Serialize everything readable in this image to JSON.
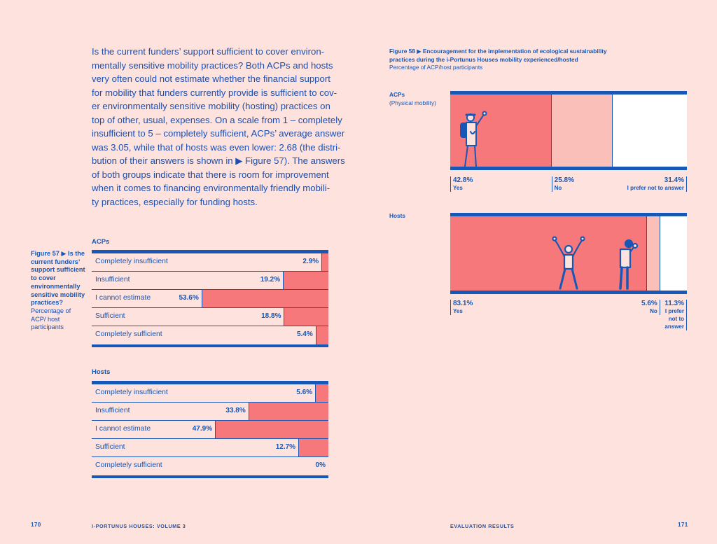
{
  "paragraph": {
    "lines": [
      "Is the current funders’ support sufficient to cover environ-",
      "mentally sensitive mobility practices? Both ACPs and hosts",
      "very often could not estimate whether the financial support",
      "for mobility that funders currently provide is sufficient to cov-",
      "er environmentally sensitive mobility (hosting) practices on",
      "top of other, usual, expenses. On a scale from 1 – completely",
      "insufficient to 5 – completely sufficient, ACPs’ average answer",
      "was 3.05, while that of hosts was even lower: 2.68 (the distri-",
      "bution of their answers is shown in ▶ Figure 57). The answers",
      "of both groups indicate that there is room for improvement",
      "when it comes to financing environmentally friendly mobili-",
      "ty practices, especially for funding hosts."
    ]
  },
  "figure57": {
    "title": "Figure 57 ▶ Is the current funders’ support sufficient to cover environmentally sensitive mobility practices?",
    "subtitle": "Percentage of ACP/ host participants"
  },
  "figure58": {
    "title_line1": "Figure 58 ▶ Encouragement for the implementation of ecological sustainability",
    "title_line2": "practices during the i-Portunus Houses mobility experienced/hosted",
    "subtitle": "Percentage of ACP/host participants",
    "acps_label": "ACPs",
    "acps_sub": "(Physical mobility)",
    "hosts_label": "Hosts"
  },
  "chart_data": [
    {
      "type": "bar",
      "orientation": "horizontal",
      "title": "ACPs",
      "categories": [
        "Completely insufficient",
        "Insufficient",
        "I cannot estimate",
        "Sufficient",
        "Completely sufficient"
      ],
      "values": [
        2.9,
        19.2,
        53.6,
        18.8,
        5.4
      ],
      "labels": [
        "2.9%",
        "19.2%",
        "53.6%",
        "18.8%",
        "5.4%"
      ],
      "unit": "%",
      "xlim": [
        0,
        100
      ]
    },
    {
      "type": "bar",
      "orientation": "horizontal",
      "title": "Hosts",
      "categories": [
        "Completely insufficient",
        "Insufficient",
        "I cannot estimate",
        "Sufficient",
        "Completely sufficient"
      ],
      "values": [
        5.6,
        33.8,
        47.9,
        12.7,
        0
      ],
      "labels": [
        "5.6%",
        "33.8%",
        "47.9%",
        "12.7%",
        "0%"
      ],
      "unit": "%",
      "xlim": [
        0,
        100
      ]
    },
    {
      "type": "bar",
      "stacked": true,
      "title": "ACPs",
      "categories": [
        "Yes",
        "No",
        "I prefer not to answer"
      ],
      "values": [
        42.8,
        25.8,
        31.4
      ],
      "labels": [
        "42.8%",
        "25.8%",
        "31.4%"
      ],
      "colors": [
        "#f6787a",
        "#fbbfb9",
        "#ffffff"
      ]
    },
    {
      "type": "bar",
      "stacked": true,
      "title": "Hosts",
      "categories": [
        "Yes",
        "No",
        "I prefer not to answer"
      ],
      "category_display": [
        "Yes",
        "No",
        "I prefer\nnot to\nanswer"
      ],
      "values": [
        83.1,
        5.6,
        11.3
      ],
      "labels": [
        "83.1%",
        "5.6%",
        "11.3%"
      ],
      "colors": [
        "#f6787a",
        "#fbbfb9",
        "#ffffff"
      ]
    }
  ],
  "footer": {
    "page_left": "170",
    "book_title": "i-Portunus Houses: Volume 3",
    "section": "Evaluation results",
    "page_right": "171"
  }
}
